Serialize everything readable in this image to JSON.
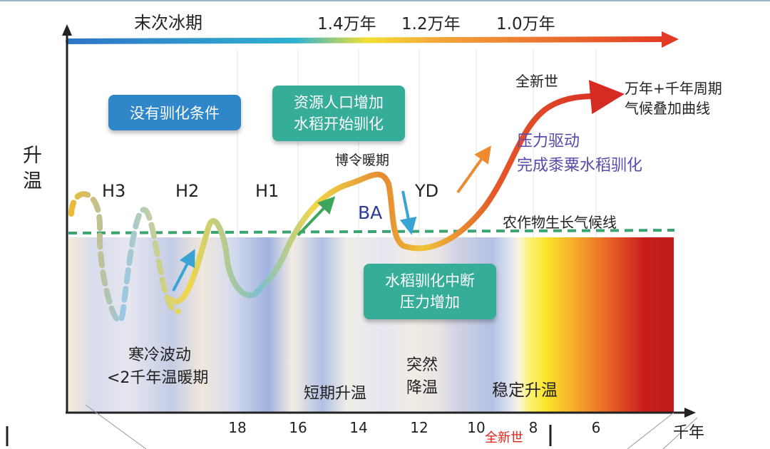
{
  "timeline": {
    "label_glacial": "末次冰期",
    "label_14k": "1.4万年",
    "label_12k": "1.2万年",
    "label_10k": "1.0万年"
  },
  "axis": {
    "y_label_1": "升",
    "y_label_2": "温",
    "x_unit": "千年",
    "x_ticks": [
      "18",
      "16",
      "14",
      "12",
      "10",
      "8",
      "6"
    ]
  },
  "events": {
    "h3": "H3",
    "h2": "H2",
    "h1": "H1",
    "ba": "BA",
    "yd": "YD",
    "bolling": "博令暖期",
    "holocene": "全新世",
    "holocene_red": "全新世"
  },
  "boxes": {
    "no_domestication": "没有驯化条件",
    "resources_line1": "资源人口增加",
    "resources_line2": "水稻开始驯化",
    "interrupted_line1": "水稻驯化中断",
    "interrupted_line2": "压力增加"
  },
  "annotations": {
    "curve_line1": "万年+千年周期",
    "curve_line2": "气候叠加曲线",
    "pressure_line1": "压力驱动",
    "pressure_line2": "完成黍粟水稻驯化",
    "crop_line": "农作物生长气候线"
  },
  "phases": {
    "cold_line1": "寒冷波动",
    "cold_line2": "<2千年温暖期",
    "short_warming": "短期升温",
    "sudden_line1": "突然",
    "sudden_line2": "降温",
    "stable_warming": "稳定升温"
  },
  "colors": {
    "box_blue": "#2f86c9",
    "box_teal": "#36ad98",
    "crop_line": "#3aa571",
    "pressure_text": "#5a48b0",
    "axis_red": "#e23a24",
    "holocene_red": "#e0241c"
  }
}
